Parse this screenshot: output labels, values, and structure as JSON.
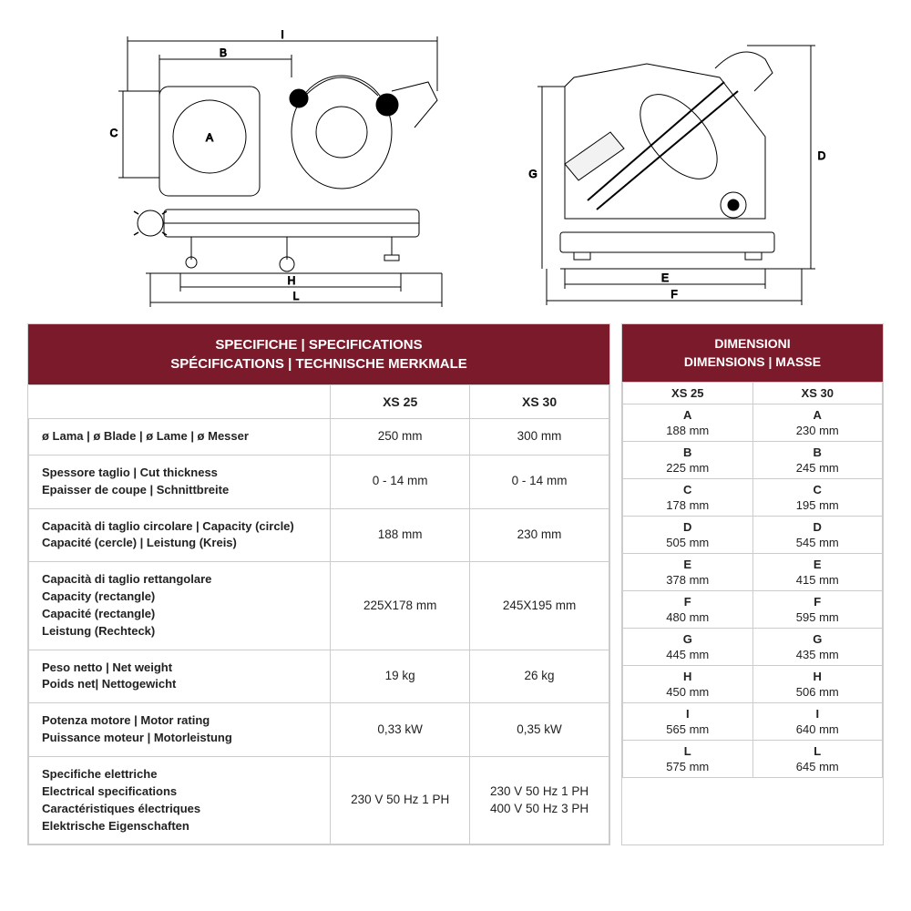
{
  "colors": {
    "header_bg": "#7a1a2b",
    "header_text": "#ffffff",
    "border": "#cccccc",
    "text": "#222222",
    "diagram_stroke": "#000000",
    "diagram_fill": "#ffffff"
  },
  "diagram": {
    "left_labels": [
      "I",
      "B",
      "A",
      "C",
      "H",
      "L"
    ],
    "right_labels": [
      "D",
      "G",
      "E",
      "F"
    ]
  },
  "spec": {
    "header_line1": "SPECIFICHE | SPECIFICATIONS",
    "header_line2": "SPÉCIFICATIONS | TECHNISCHE MERKMALE",
    "col1": "XS 25",
    "col2": "XS 30",
    "rows": [
      {
        "label": "ø Lama | ø Blade | ø Lame | ø Messer",
        "v1": "250 mm",
        "v2": "300 mm"
      },
      {
        "label": "Spessore taglio | Cut thickness\nEpaisser de coupe | Schnittbreite",
        "v1": "0 - 14 mm",
        "v2": "0 - 14 mm"
      },
      {
        "label": "Capacità di taglio circolare | Capacity (circle)\nCapacité (cercle) | Leistung (Kreis)",
        "v1": "188 mm",
        "v2": "230 mm"
      },
      {
        "label": "Capacità di taglio rettangolare\nCapacity (rectangle)\nCapacité (rectangle)\nLeistung (Rechteck)",
        "v1": "225X178 mm",
        "v2": "245X195 mm"
      },
      {
        "label": "Peso netto | Net weight\nPoids net| Nettogewicht",
        "v1": "19 kg",
        "v2": "26 kg"
      },
      {
        "label": "Potenza motore | Motor rating\nPuissance moteur | Motorleistung",
        "v1": "0,33 kW",
        "v2": "0,35 kW"
      },
      {
        "label": "Specifiche elettriche\nElectrical specifications\nCaractéristiques électriques\nElektrische Eigenschaften",
        "v1": "230 V 50 Hz 1 PH",
        "v2": "230 V 50 Hz 1 PH\n400 V 50 Hz 3 PH"
      }
    ]
  },
  "dim": {
    "header_line1": "DIMENSIONI",
    "header_line2": "DIMENSIONS | MASSE",
    "col1": "XS 25",
    "col2": "XS 30",
    "rows": [
      {
        "k": "A",
        "v1": "188 mm",
        "v2": "230 mm"
      },
      {
        "k": "B",
        "v1": "225 mm",
        "v2": "245 mm"
      },
      {
        "k": "C",
        "v1": "178 mm",
        "v2": "195 mm"
      },
      {
        "k": "D",
        "v1": "505 mm",
        "v2": "545 mm"
      },
      {
        "k": "E",
        "v1": "378 mm",
        "v2": "415 mm"
      },
      {
        "k": "F",
        "v1": "480 mm",
        "v2": "595 mm"
      },
      {
        "k": "G",
        "v1": "445 mm",
        "v2": "435 mm"
      },
      {
        "k": "H",
        "v1": "450 mm",
        "v2": "506 mm"
      },
      {
        "k": "I",
        "v1": "565 mm",
        "v2": "640 mm"
      },
      {
        "k": "L",
        "v1": "575 mm",
        "v2": "645 mm"
      }
    ]
  }
}
